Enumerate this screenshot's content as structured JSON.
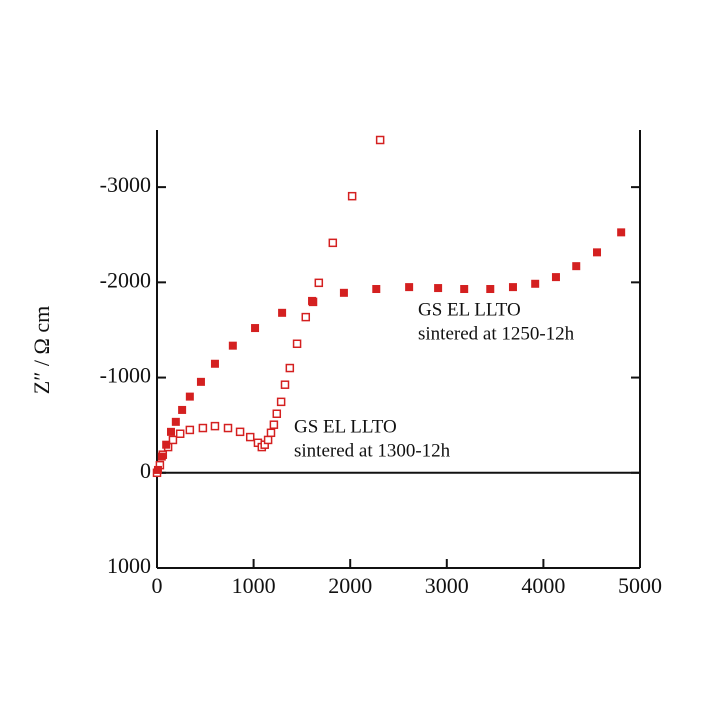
{
  "chart_data": {
    "type": "scatter",
    "y_label": "Z″ / Ω cm",
    "xlim": [
      0,
      5000
    ],
    "xticks": [
      0,
      1000,
      2000,
      3000,
      4000,
      5000
    ],
    "ylim": [
      1000,
      -3600
    ],
    "yticks": [
      -3000,
      -2000,
      -1000,
      0,
      1000
    ],
    "series": [
      {
        "color": "#d42020",
        "marker": "open-square",
        "x": [
          0,
          30,
          60,
          115,
          165,
          240,
          340,
          475,
          600,
          735,
          860,
          965,
          1045,
          1085,
          1115,
          1150,
          1180,
          1210,
          1240,
          1285,
          1325,
          1375,
          1450,
          1540,
          1615,
          1675,
          1820,
          2020,
          2310
        ],
        "values": [
          0,
          -80,
          -190,
          -270,
          -345,
          -410,
          -450,
          -470,
          -490,
          -470,
          -430,
          -375,
          -315,
          -270,
          -295,
          -345,
          -420,
          -505,
          -620,
          -745,
          -925,
          -1100,
          -1355,
          -1635,
          -1795,
          -1995,
          -2415,
          -2905,
          -3495
        ]
      },
      {
        "color": "#d42020",
        "marker": "filled-square",
        "x": [
          10,
          50,
          95,
          145,
          195,
          260,
          340,
          455,
          600,
          785,
          1015,
          1295,
          1605,
          1935,
          2270,
          2610,
          2910,
          3180,
          3450,
          3685,
          3915,
          4130,
          4340,
          4555,
          4805
        ],
        "values": [
          -30,
          -170,
          -295,
          -430,
          -535,
          -660,
          -800,
          -955,
          -1145,
          -1335,
          -1520,
          -1680,
          -1805,
          -1890,
          -1930,
          -1950,
          -1940,
          -1930,
          -1930,
          -1950,
          -1985,
          -2055,
          -2170,
          -2315,
          -2525
        ]
      }
    ],
    "annotations": [
      {
        "lines": [
          "GS EL LLTO",
          "sintered at 1250-12h"
        ]
      },
      {
        "lines": [
          "GS EL LLTO",
          "sintered at 1300-12h"
        ]
      }
    ]
  }
}
